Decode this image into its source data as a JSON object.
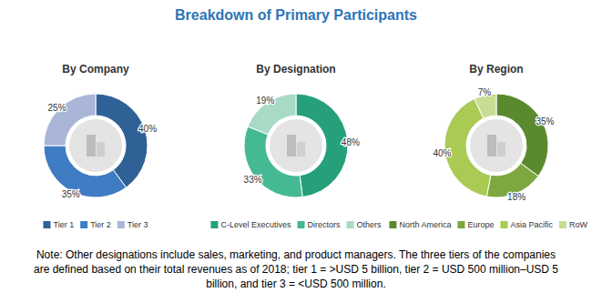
{
  "title": "Breakdown of Primary Participants",
  "note": [
    "Note: Other designations include sales, marketing, and product managers. The three tiers of the companies",
    "are defined based on their total revenues as of 2018; tier 1 = >USD 5 billion, tier 2 = USD 500 million–USD 5",
    "billion, and tier 3 = <USD 500 million."
  ],
  "chart_data": [
    {
      "type": "pie",
      "title": "By Company",
      "categories": [
        "Tier 1",
        "Tier 2",
        "Tier 3"
      ],
      "values": [
        40,
        35,
        25
      ],
      "value_labels": [
        "40%",
        "35%",
        "25%"
      ],
      "colors": [
        "#2f6196",
        "#3f7cc4",
        "#a9b6d8"
      ],
      "data_labels": true
    },
    {
      "type": "pie",
      "title": "By Designation",
      "categories": [
        "C-Level Executives",
        "Directors",
        "Others"
      ],
      "values": [
        48,
        33,
        19
      ],
      "value_labels": [
        "48%",
        "33%",
        "19%"
      ],
      "colors": [
        "#25a07a",
        "#45b994",
        "#a8dac6"
      ],
      "data_labels": true
    },
    {
      "type": "pie",
      "title": "By Region",
      "categories": [
        "North America",
        "Europe",
        "Asia Pacific",
        "RoW"
      ],
      "values": [
        35,
        18,
        40,
        7
      ],
      "value_labels": [
        "35%",
        "18%",
        "40%",
        "7%"
      ],
      "colors": [
        "#5b8a2e",
        "#7ea83f",
        "#a9cb54",
        "#c9dc94"
      ],
      "data_labels": true
    }
  ]
}
